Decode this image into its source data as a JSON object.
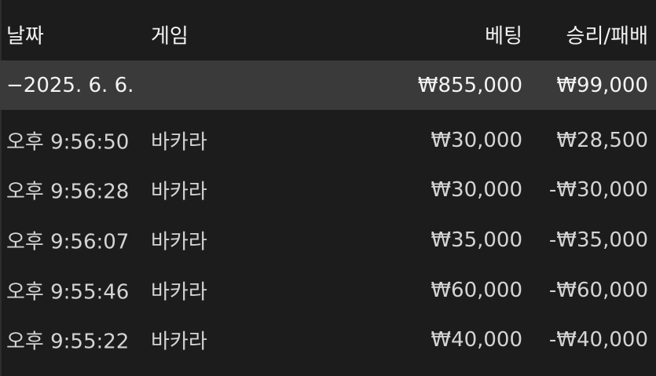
{
  "columns": {
    "date": "날짜",
    "game": "게임",
    "bet": "베팅",
    "result": "승리/패배"
  },
  "group": {
    "toggle": "−",
    "date": "2025. 6. 6.",
    "bet": "₩855,000",
    "result": "₩99,000"
  },
  "rows": [
    {
      "time": "오후 9:56:50",
      "game": "바카라",
      "bet": "₩30,000",
      "result": "₩28,500"
    },
    {
      "time": "오후 9:56:28",
      "game": "바카라",
      "bet": "₩30,000",
      "result": "-₩30,000"
    },
    {
      "time": "오후 9:56:07",
      "game": "바카라",
      "bet": "₩35,000",
      "result": "-₩35,000"
    },
    {
      "time": "오후 9:55:46",
      "game": "바카라",
      "bet": "₩60,000",
      "result": "-₩60,000"
    },
    {
      "time": "오후 9:55:22",
      "game": "바카라",
      "bet": "₩40,000",
      "result": "-₩40,000"
    }
  ]
}
